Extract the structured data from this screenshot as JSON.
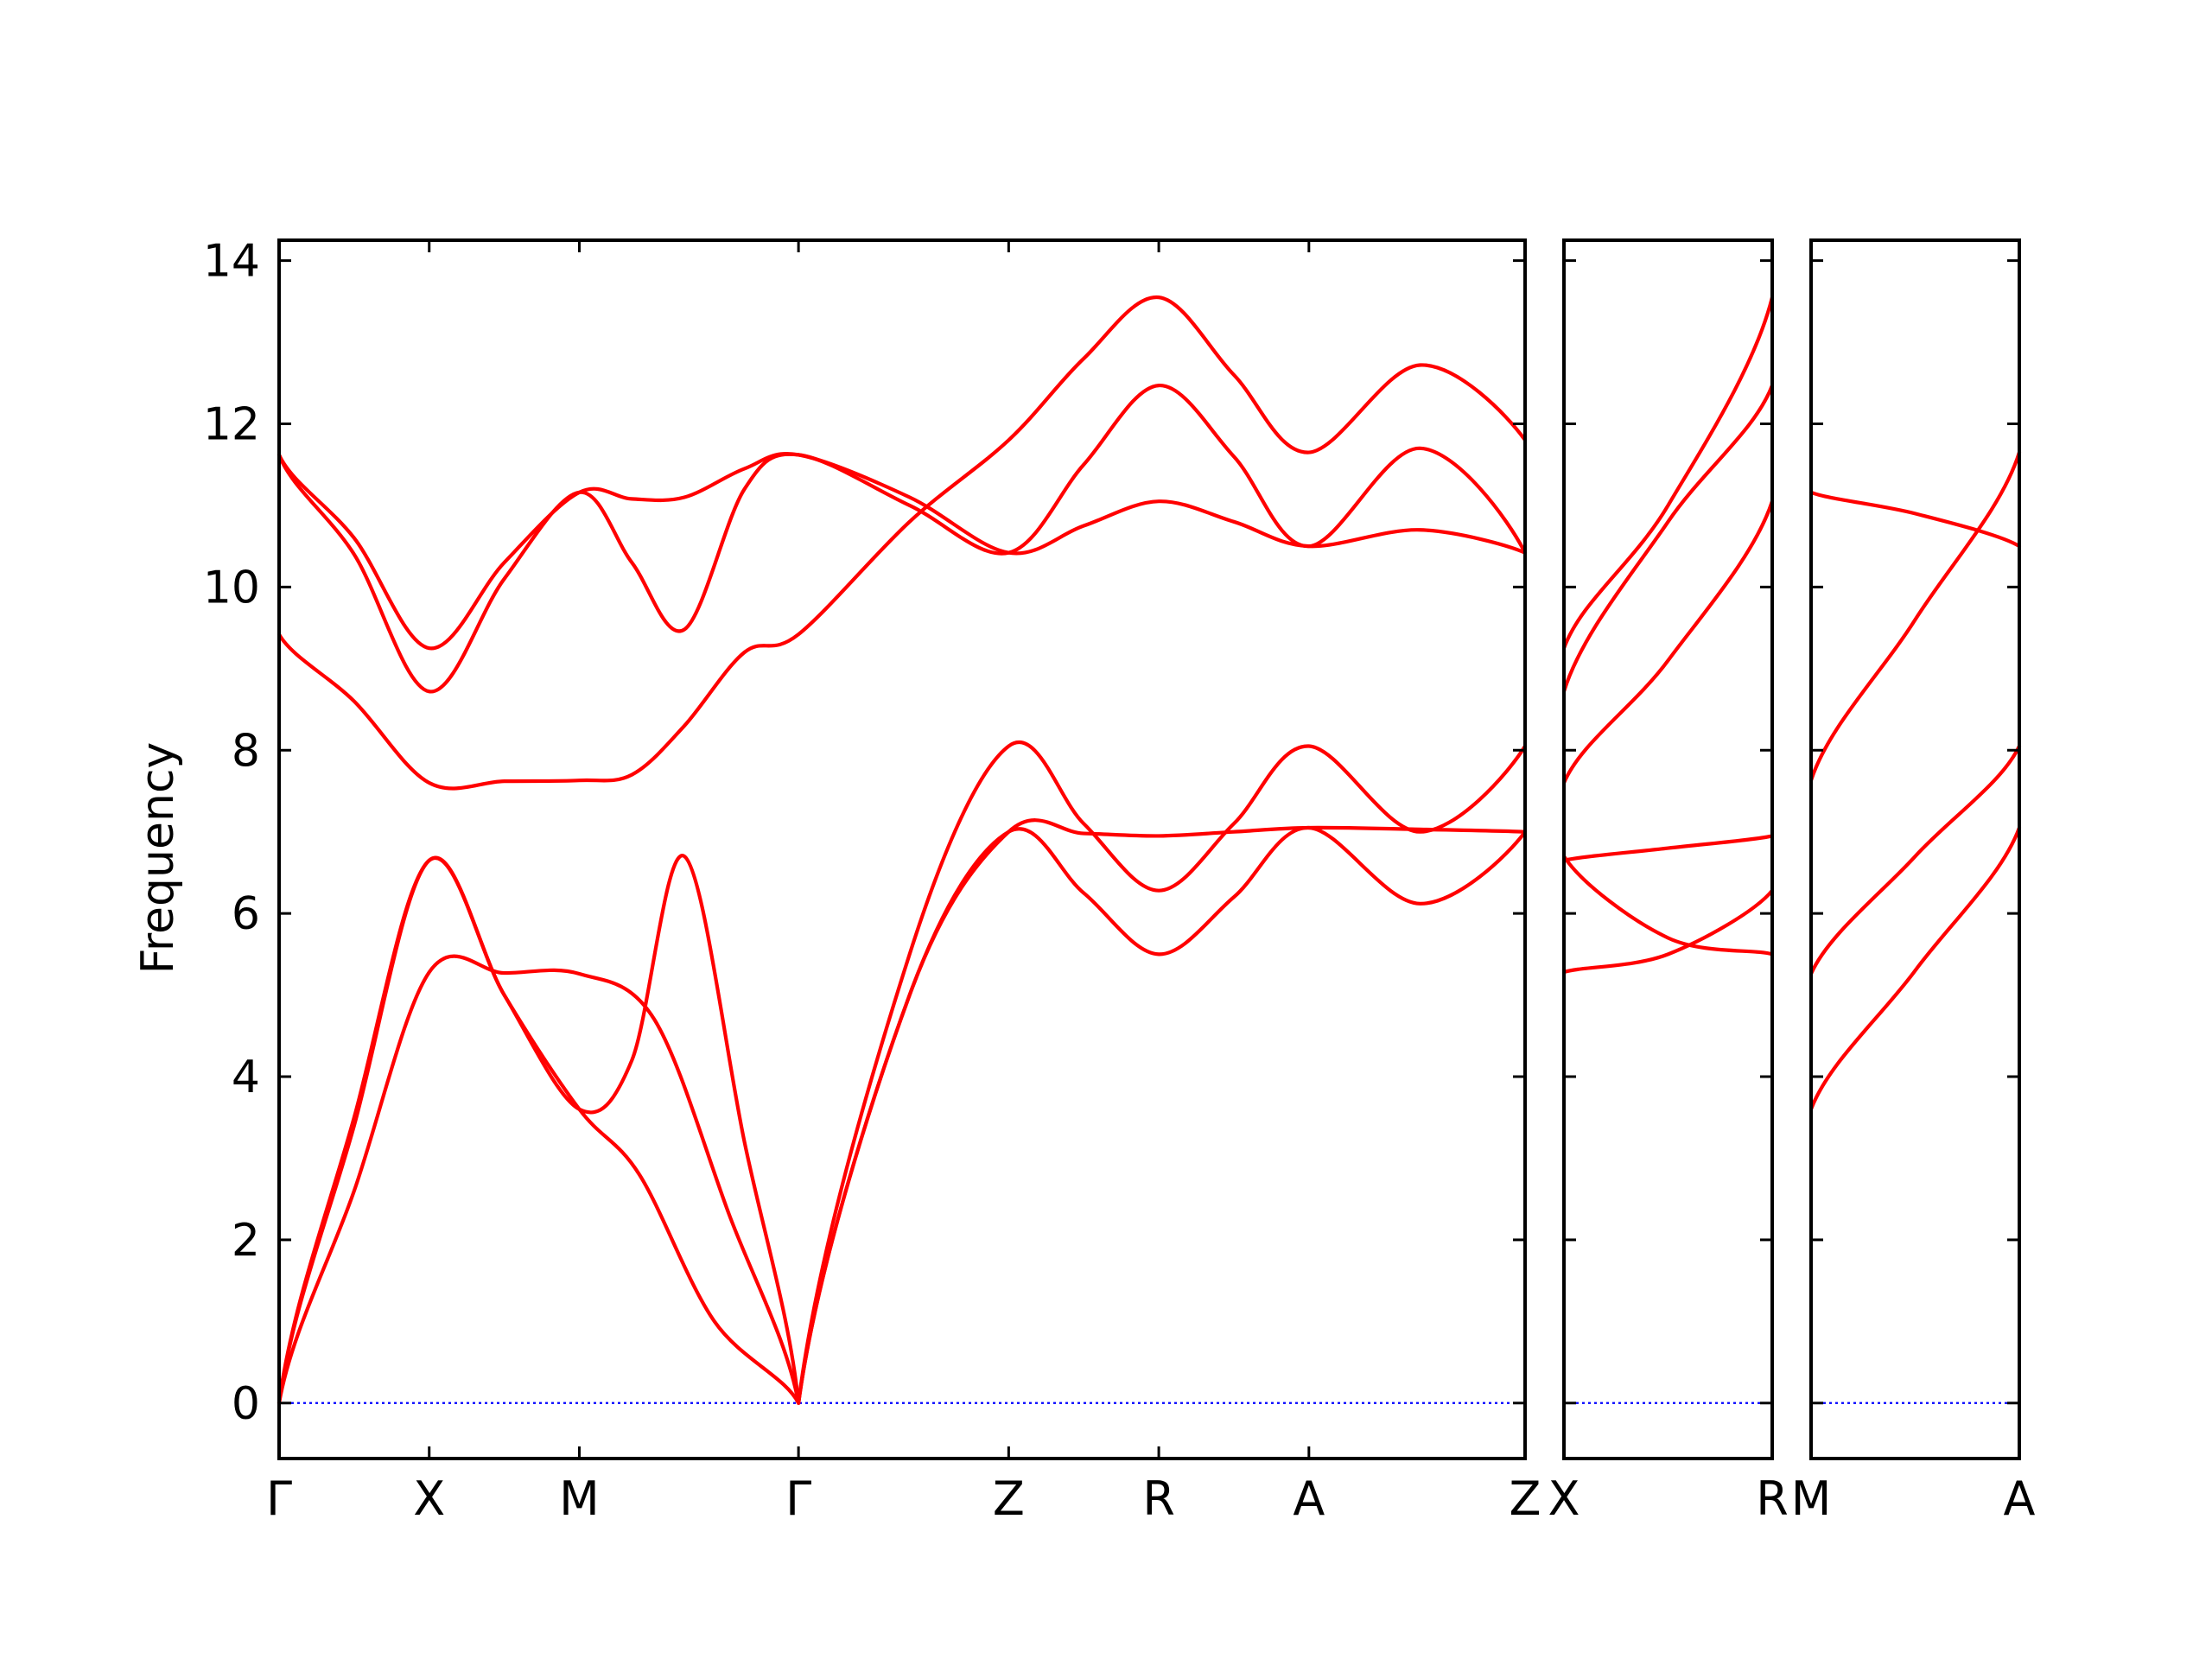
{
  "chart_data": {
    "type": "line",
    "title": "",
    "ylabel": "Frequency",
    "xlabel": "",
    "ylim": [
      -0.68,
      14.25
    ],
    "yticks": [
      0,
      2,
      4,
      6,
      8,
      10,
      12,
      14
    ],
    "grid": false,
    "legend": "none",
    "colors": {
      "bands": "#ff0000",
      "zero_line": "#0000ff",
      "axes": "#000000"
    },
    "panels": [
      {
        "path": [
          "Γ",
          "X",
          "M",
          "Γ",
          "Z",
          "R",
          "A",
          "Z"
        ],
        "kpos": [
          0,
          1,
          2,
          3.46,
          4.86,
          5.86,
          6.86,
          8.3
        ],
        "series": [
          {
            "values": [
              [
                0,
                0
              ],
              [
                0.5,
                3.5
              ],
              [
                1,
                6.65
              ],
              [
                1.5,
                5.0
              ],
              [
                2,
                3.6
              ],
              [
                2.35,
                4.2
              ],
              [
                2.7,
                6.7
              ],
              [
                3.1,
                3.2
              ],
              [
                3.46,
                0
              ]
            ]
          },
          {
            "values": [
              [
                0,
                0
              ],
              [
                0.5,
                3.4
              ],
              [
                1,
                6.65
              ],
              [
                1.5,
                5.0
              ],
              [
                2,
                3.6
              ],
              [
                2.4,
                2.8
              ],
              [
                2.9,
                1.0
              ],
              [
                3.46,
                0
              ]
            ]
          },
          {
            "values": [
              [
                0,
                0
              ],
              [
                0.5,
                2.6
              ],
              [
                1,
                5.28
              ],
              [
                1.5,
                5.27
              ],
              [
                2,
                5.26
              ],
              [
                2.5,
                4.7
              ],
              [
                3,
                2.3
              ],
              [
                3.46,
                0
              ]
            ]
          },
          {
            "values": [
              [
                0,
                11.62
              ],
              [
                0.5,
                10.6
              ],
              [
                1,
                9.25
              ],
              [
                1.5,
                10.3
              ],
              [
                2,
                11.16
              ],
              [
                2.35,
                11.08
              ],
              [
                2.7,
                11.1
              ],
              [
                3.1,
                11.45
              ],
              [
                3.46,
                11.62
              ],
              [
                4.2,
                11.1
              ],
              [
                4.86,
                10.42
              ],
              [
                5.36,
                10.75
              ],
              [
                5.86,
                11.05
              ],
              [
                6.36,
                10.8
              ],
              [
                6.86,
                10.5
              ],
              [
                7.6,
                10.7
              ],
              [
                8.3,
                10.42
              ]
            ]
          },
          {
            "values": [
              [
                0,
                11.62
              ],
              [
                0.5,
                10.4
              ],
              [
                1,
                8.72
              ],
              [
                1.5,
                10.1
              ],
              [
                2,
                11.16
              ],
              [
                2.35,
                10.3
              ],
              [
                2.7,
                9.48
              ],
              [
                3.1,
                11.2
              ],
              [
                3.46,
                11.62
              ],
              [
                4.2,
                11.0
              ],
              [
                4.86,
                10.42
              ],
              [
                5.36,
                11.5
              ],
              [
                5.86,
                12.47
              ],
              [
                6.36,
                11.6
              ],
              [
                6.86,
                10.5
              ],
              [
                7.6,
                11.7
              ],
              [
                8.3,
                10.42
              ]
            ]
          },
          {
            "values": [
              [
                0,
                9.42
              ],
              [
                0.5,
                8.6
              ],
              [
                1,
                7.6
              ],
              [
                1.5,
                7.62
              ],
              [
                2,
                7.63
              ],
              [
                2.35,
                7.7
              ],
              [
                2.7,
                8.3
              ],
              [
                3.1,
                9.2
              ],
              [
                3.46,
                9.42
              ],
              [
                4.2,
                10.8
              ],
              [
                4.86,
                11.8
              ],
              [
                5.36,
                12.8
              ],
              [
                5.86,
                13.55
              ],
              [
                6.36,
                12.6
              ],
              [
                6.86,
                11.65
              ],
              [
                7.6,
                12.72
              ],
              [
                8.3,
                11.8
              ]
            ]
          },
          {
            "values": [
              [
                3.46,
                0
              ],
              [
                4.2,
                5.5
              ],
              [
                4.86,
                8.05
              ],
              [
                5.36,
                7.1
              ],
              [
                5.86,
                6.28
              ],
              [
                6.36,
                7.1
              ],
              [
                6.86,
                8.05
              ],
              [
                7.6,
                7.0
              ],
              [
                8.3,
                8.05
              ]
            ]
          },
          {
            "values": [
              [
                3.46,
                0
              ],
              [
                4.2,
                5.0
              ],
              [
                4.86,
                7.0
              ],
              [
                5.36,
                6.25
              ],
              [
                5.86,
                5.5
              ],
              [
                6.36,
                6.2
              ],
              [
                6.86,
                7.05
              ],
              [
                7.6,
                6.12
              ],
              [
                8.3,
                7.0
              ]
            ]
          },
          {
            "values": [
              [
                3.46,
                0
              ],
              [
                4.2,
                5.0
              ],
              [
                4.86,
                7.0
              ],
              [
                5.36,
                6.98
              ],
              [
                5.86,
                6.95
              ],
              [
                6.36,
                7.0
              ],
              [
                6.86,
                7.05
              ],
              [
                7.6,
                7.03
              ],
              [
                8.3,
                7.0
              ]
            ]
          }
        ]
      },
      {
        "path": [
          "X",
          "R"
        ],
        "kpos": [
          0,
          1
        ],
        "series": [
          {
            "values": [
              [
                0,
                9.25
              ],
              [
                0.5,
                11.0
              ],
              [
                1,
                13.55
              ]
            ]
          },
          {
            "values": [
              [
                0,
                8.72
              ],
              [
                0.5,
                10.8
              ],
              [
                1,
                12.47
              ]
            ]
          },
          {
            "values": [
              [
                0,
                7.6
              ],
              [
                0.5,
                9.1
              ],
              [
                1,
                11.05
              ]
            ]
          },
          {
            "values": [
              [
                0,
                6.65
              ],
              [
                0.5,
                6.8
              ],
              [
                1,
                6.95
              ]
            ]
          },
          {
            "values": [
              [
                0,
                6.7
              ],
              [
                0.5,
                5.7
              ],
              [
                1,
                5.5
              ]
            ]
          },
          {
            "values": [
              [
                0,
                5.28
              ],
              [
                0.5,
                5.5
              ],
              [
                1,
                6.28
              ]
            ]
          }
        ]
      },
      {
        "path": [
          "M",
          "A"
        ],
        "kpos": [
          0,
          1
        ],
        "series": [
          {
            "values": [
              [
                0,
                11.16
              ],
              [
                0.5,
                10.9
              ],
              [
                1,
                10.5
              ]
            ]
          },
          {
            "values": [
              [
                0,
                7.63
              ],
              [
                0.5,
                9.6
              ],
              [
                1,
                11.65
              ]
            ]
          },
          {
            "values": [
              [
                0,
                5.26
              ],
              [
                0.5,
                6.7
              ],
              [
                1,
                8.05
              ]
            ]
          },
          {
            "values": [
              [
                0,
                3.6
              ],
              [
                0.5,
                5.3
              ],
              [
                1,
                7.05
              ]
            ]
          }
        ]
      }
    ]
  }
}
